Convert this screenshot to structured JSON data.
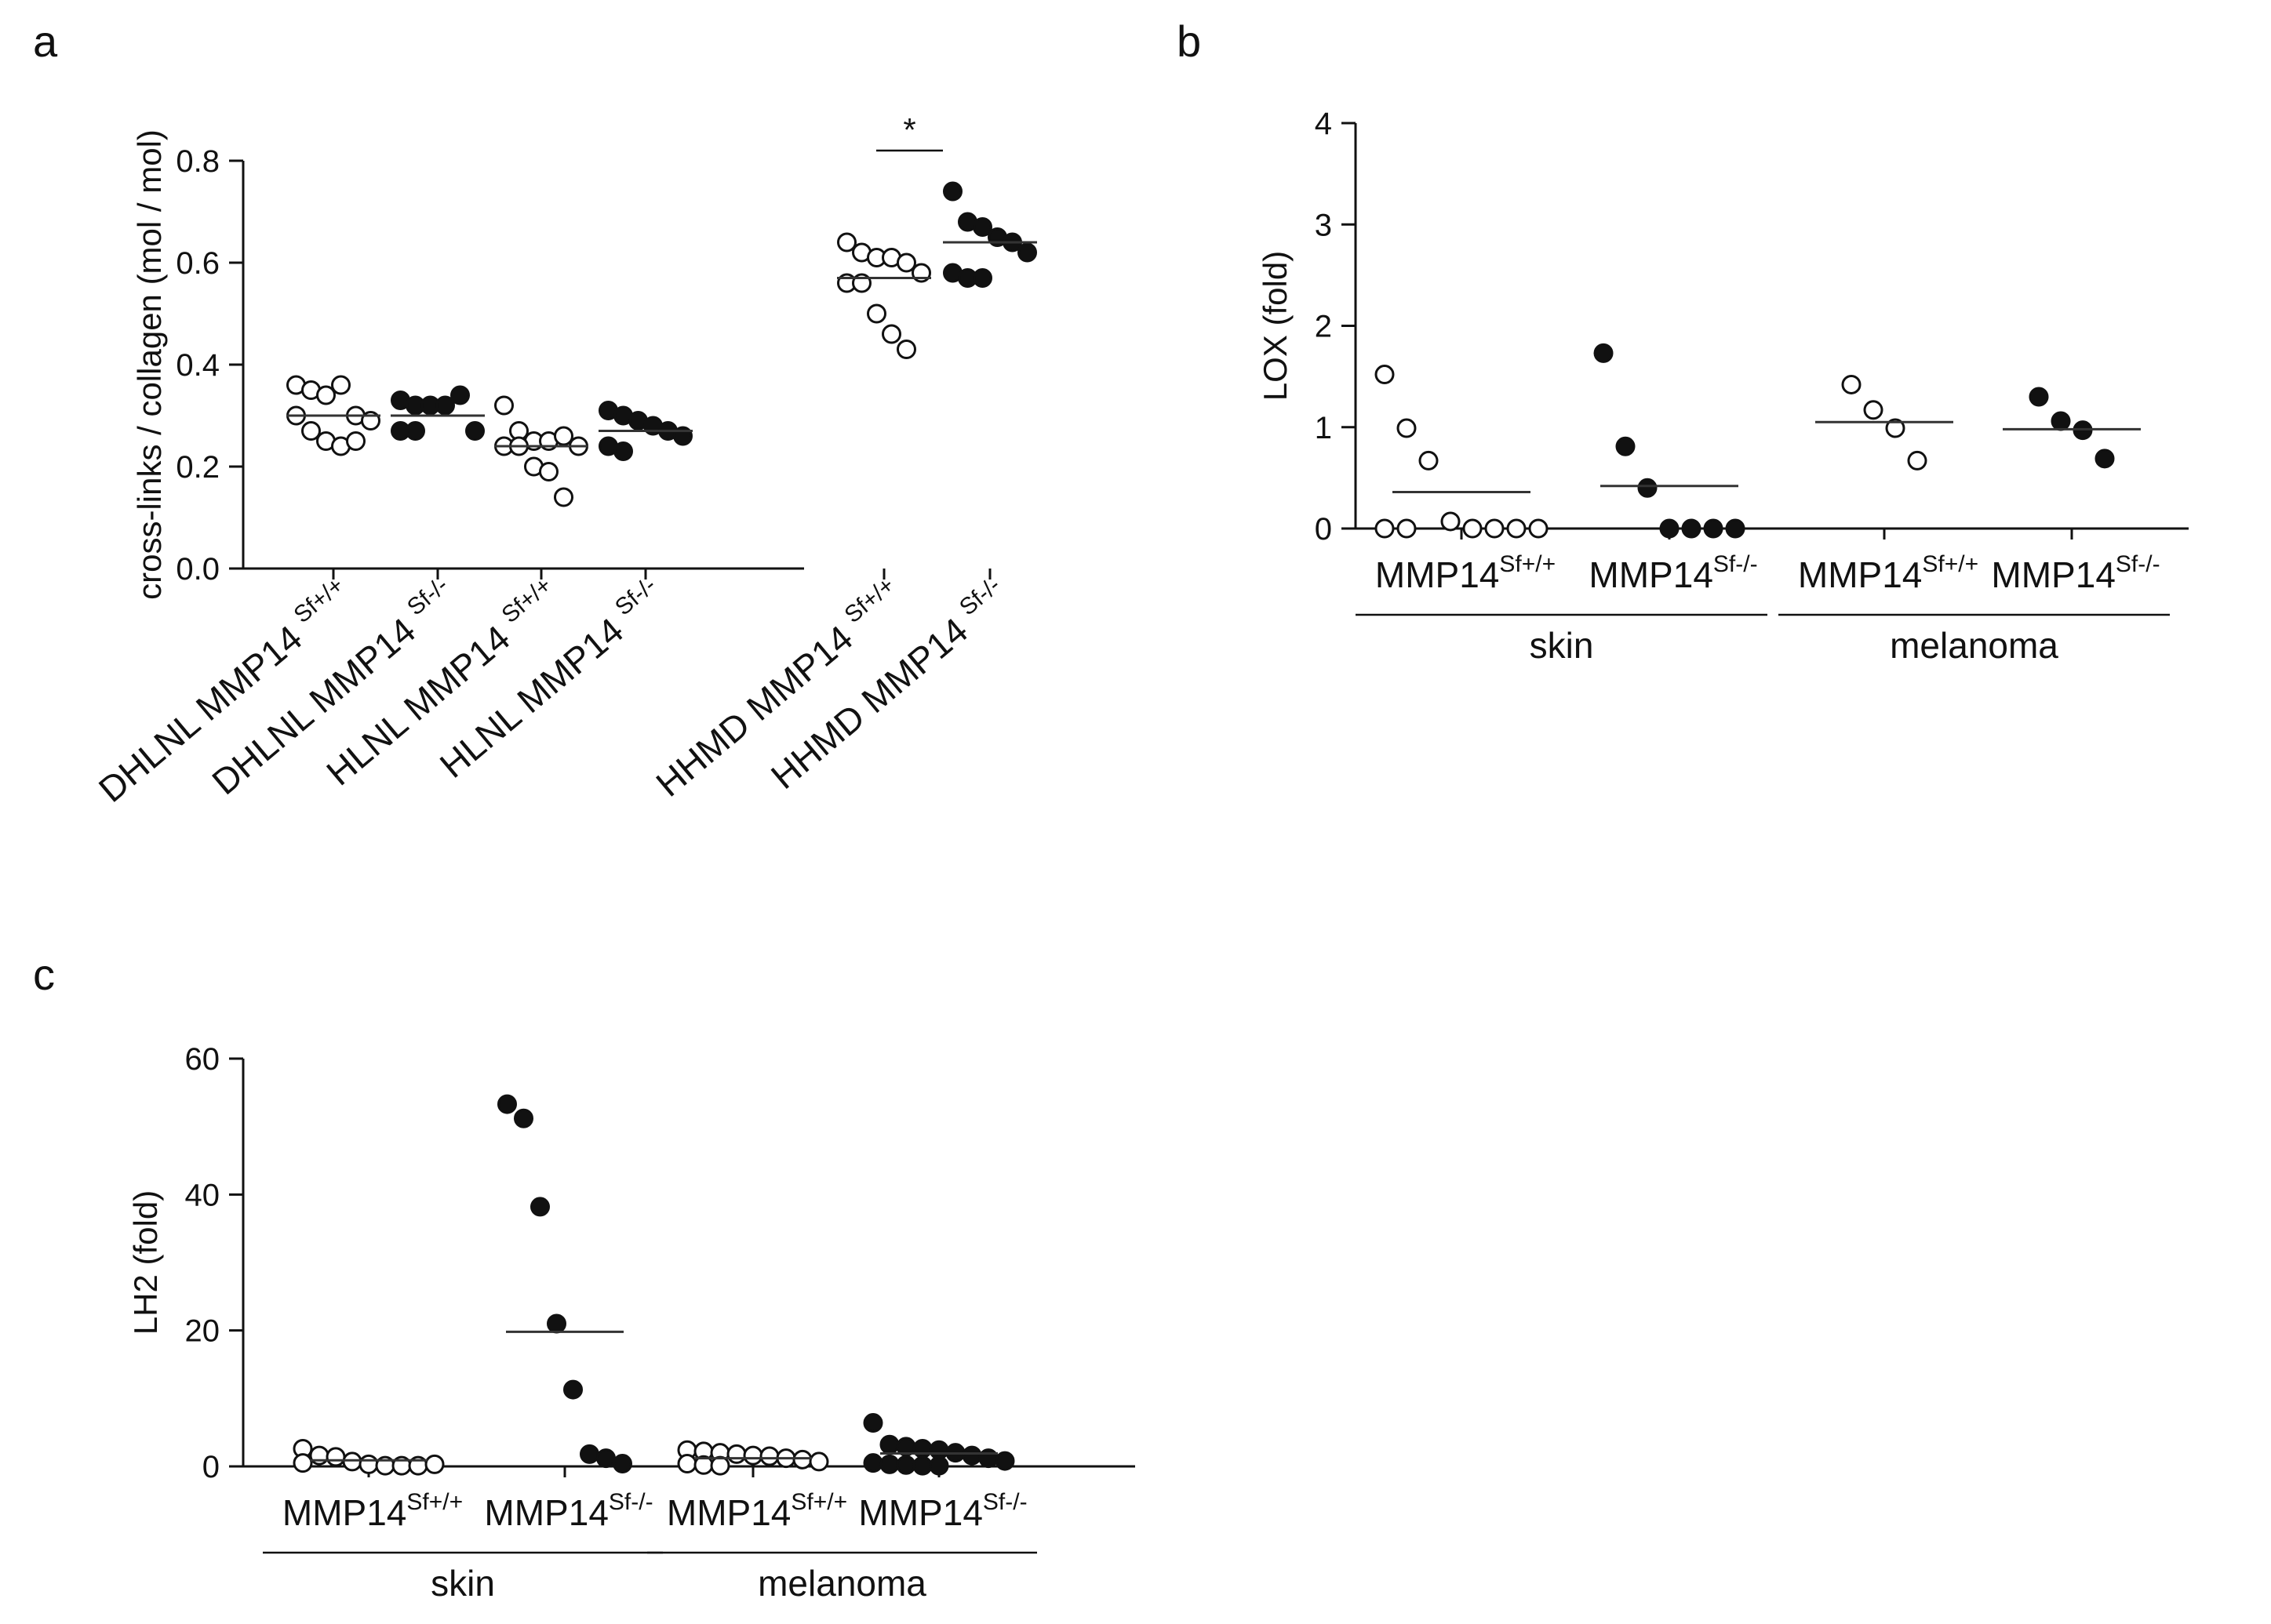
{
  "chart_data": [
    {
      "panel": "a",
      "type": "scatter",
      "ylabel": "cross-links / collagen (mol / mol)",
      "ylim": [
        0,
        0.8
      ],
      "yticks": [
        0.0,
        0.2,
        0.4,
        0.6,
        0.8
      ],
      "ytick_labels": [
        "0.0",
        "0.2",
        "0.4",
        "0.6",
        "0.8"
      ],
      "categories": [
        {
          "base": "DHLNL MMP14",
          "sup": "Sf+/+",
          "marker": "open",
          "mean": 0.3,
          "values": [
            0.36,
            0.35,
            0.34,
            0.36,
            0.3,
            0.29,
            0.3,
            0.27,
            0.25,
            0.24,
            0.25
          ]
        },
        {
          "base": "DHLNL MMP14",
          "sup": "Sf-/-",
          "marker": "filled",
          "mean": 0.3,
          "values": [
            0.33,
            0.32,
            0.32,
            0.32,
            0.34,
            0.27,
            0.27,
            0.27
          ]
        },
        {
          "base": "HLNL MMP14",
          "sup": "Sf+/+",
          "marker": "open",
          "mean": 0.24,
          "values": [
            0.32,
            0.27,
            0.25,
            0.25,
            0.26,
            0.24,
            0.24,
            0.24,
            0.2,
            0.19,
            0.14
          ]
        },
        {
          "base": "HLNL MMP14",
          "sup": "Sf-/-",
          "marker": "filled",
          "mean": 0.27,
          "values": [
            0.31,
            0.3,
            0.29,
            0.28,
            0.27,
            0.26,
            0.24,
            0.23
          ]
        },
        {
          "base": "HHMD MMP14",
          "sup": "Sf+/+",
          "marker": "open",
          "mean": 0.57,
          "values": [
            0.64,
            0.62,
            0.61,
            0.61,
            0.6,
            0.58,
            0.56,
            0.56,
            0.5,
            0.46,
            0.43
          ]
        },
        {
          "base": "HHMD MMP14",
          "sup": "Sf-/-",
          "marker": "filled",
          "mean": 0.64,
          "values": [
            0.74,
            0.68,
            0.67,
            0.65,
            0.64,
            0.62,
            0.58,
            0.57,
            0.57
          ]
        }
      ],
      "significance": {
        "label": "*",
        "from": 4,
        "to": 5,
        "y": 0.82
      }
    },
    {
      "panel": "b",
      "type": "scatter",
      "ylabel": "LOX (fold)",
      "ylim": [
        0,
        4
      ],
      "yticks": [
        0,
        1,
        2,
        3,
        4
      ],
      "ytick_labels": [
        "0",
        "1",
        "2",
        "3",
        "4"
      ],
      "categories": [
        {
          "base": "MMP14",
          "sup": "Sf+/+",
          "marker": "open",
          "mean": 0.36,
          "values": [
            1.52,
            0.99,
            0.67,
            0.07,
            0,
            0,
            0,
            0,
            0,
            0
          ]
        },
        {
          "base": "MMP14",
          "sup": "Sf-/-",
          "marker": "filled",
          "mean": 0.42,
          "values": [
            1.73,
            0.81,
            0.4,
            0,
            0,
            0,
            0
          ]
        },
        {
          "base": "MMP14",
          "sup": "Sf+/+",
          "marker": "open",
          "mean": 1.05,
          "values": [
            1.42,
            1.17,
            0.99,
            0.67
          ]
        },
        {
          "base": "MMP14",
          "sup": "Sf-/-",
          "marker": "filled",
          "mean": 0.98,
          "values": [
            1.3,
            1.06,
            0.97,
            0.69
          ]
        }
      ],
      "groups": [
        {
          "label": "skin",
          "from": 0,
          "to": 1
        },
        {
          "label": "melanoma",
          "from": 2,
          "to": 3
        }
      ]
    },
    {
      "panel": "c",
      "type": "scatter",
      "ylabel": "LH2 (fold)",
      "ylim": [
        0,
        60
      ],
      "yticks": [
        0,
        20,
        40,
        60
      ],
      "ytick_labels": [
        "0",
        "20",
        "40",
        "60"
      ],
      "categories": [
        {
          "base": "MMP14",
          "sup": "Sf+/+",
          "marker": "open",
          "mean": 0.9,
          "values": [
            2.6,
            1.6,
            1.4,
            0.7,
            0.3,
            0.1,
            0.1,
            0.1,
            0.3,
            0.5
          ]
        },
        {
          "base": "MMP14",
          "sup": "Sf-/-",
          "marker": "filled",
          "mean": 19.8,
          "values": [
            53.3,
            51.2,
            38.2,
            21.0,
            11.3,
            1.8,
            1.2,
            0.4
          ]
        },
        {
          "base": "MMP14",
          "sup": "Sf+/+",
          "marker": "open",
          "mean": 1.2,
          "values": [
            2.4,
            2.2,
            2.0,
            1.8,
            1.6,
            1.5,
            1.2,
            1.0,
            0.7,
            0.4,
            0.2,
            0.1
          ]
        },
        {
          "base": "MMP14",
          "sup": "Sf-/-",
          "marker": "filled",
          "mean": 1.9,
          "values": [
            6.4,
            3.2,
            2.9,
            2.6,
            2.4,
            2.0,
            1.6,
            1.2,
            0.8,
            0.5,
            0.3,
            0.2,
            0.1,
            0.1
          ]
        }
      ],
      "groups": [
        {
          "label": "skin",
          "from": 0,
          "to": 1
        },
        {
          "label": "melanoma",
          "from": 2,
          "to": 3
        }
      ]
    }
  ]
}
